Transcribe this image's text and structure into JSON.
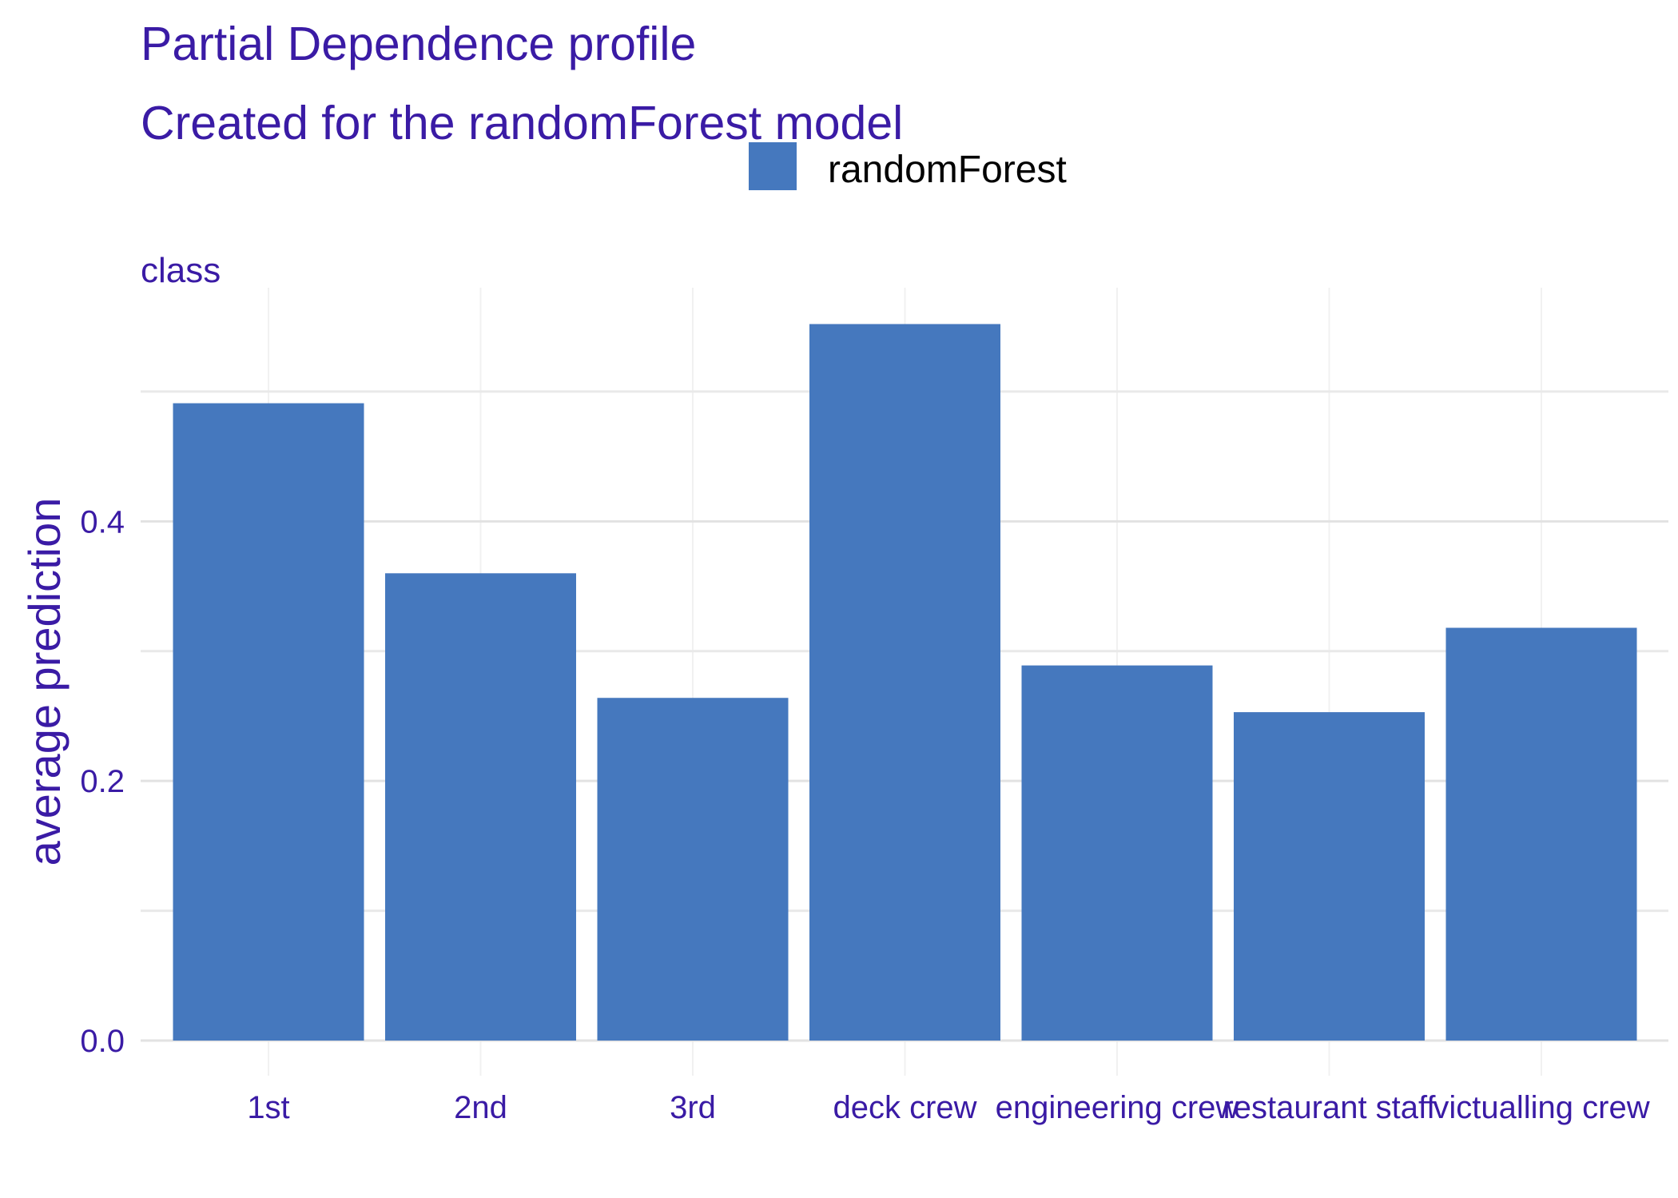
{
  "chart_data": {
    "type": "bar",
    "title": "Partial Dependence profile",
    "subtitle": "Created for the randomForest model",
    "facet_label": "class",
    "xlabel": "",
    "ylabel": "average prediction",
    "categories": [
      "1st",
      "2nd",
      "3rd",
      "deck crew",
      "engineering crew",
      "restaurant staff",
      "victualling crew"
    ],
    "series": [
      {
        "name": "randomForest",
        "color": "#4578BE",
        "values": [
          0.491,
          0.36,
          0.264,
          0.552,
          0.289,
          0.253,
          0.318
        ]
      }
    ],
    "y_ticks": [
      "0.0",
      "0.2",
      "0.4"
    ],
    "y_tick_values": [
      0.0,
      0.2,
      0.4
    ],
    "ylim": [
      0.0,
      0.58
    ],
    "grid": true,
    "legend_position": "top",
    "text_color": "#3A1BA5",
    "grid_color": "#E2E2E2"
  }
}
